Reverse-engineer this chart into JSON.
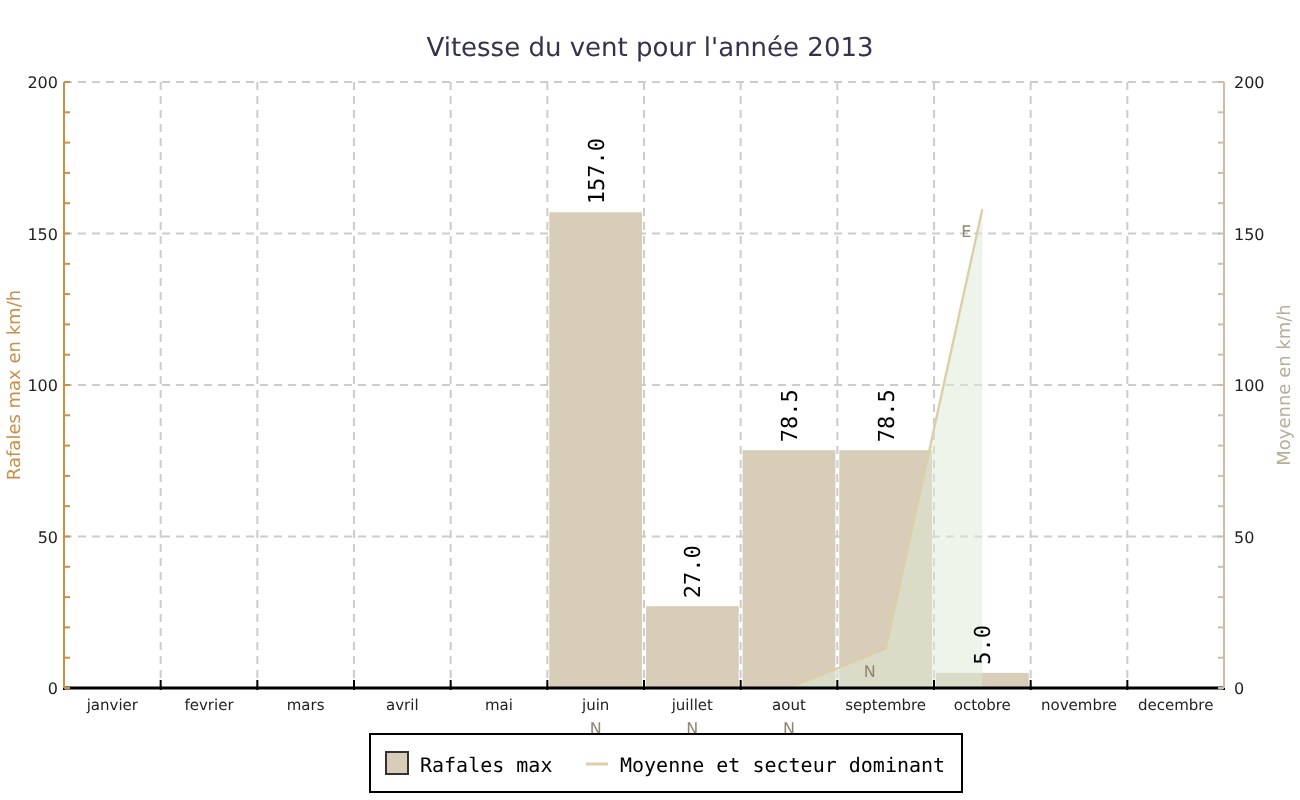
{
  "chart_data": {
    "type": "bar",
    "title": "Vitesse du vent pour l'année 2013",
    "ylabel": "Rafales max en km/h",
    "y2label": "Moyenne en km/h",
    "categories": [
      "janvier",
      "fevrier",
      "mars",
      "avril",
      "mai",
      "juin",
      "juillet",
      "aout",
      "septembre",
      "octobre",
      "novembre",
      "decembre"
    ],
    "series": [
      {
        "name": "Rafales max",
        "color": "#d8cdb9",
        "values": [
          null,
          null,
          null,
          null,
          null,
          157,
          27,
          78.5,
          78.5,
          5,
          null,
          null
        ],
        "value_labels": [
          null,
          null,
          null,
          null,
          null,
          "157.0",
          "27.0",
          "78.5",
          "78.5",
          "5.0",
          null,
          null
        ]
      },
      {
        "name": "Moyenne et secteur dominant",
        "type": "area",
        "axis": "y2",
        "color": "#dccfa8",
        "values": [
          null,
          null,
          null,
          null,
          null,
          0,
          0,
          0,
          13,
          158,
          null,
          null
        ],
        "value_labels": [
          null,
          null,
          null,
          null,
          null,
          "N",
          "N",
          "N",
          "N",
          "E",
          null,
          null
        ]
      }
    ],
    "ylim": [
      0,
      200
    ],
    "yticks": [
      0,
      50,
      100,
      150,
      200
    ],
    "y2lim": [
      0,
      200
    ],
    "y2ticks": [
      0,
      50,
      100,
      150,
      200
    ],
    "grid": true,
    "legend": "bottom"
  }
}
